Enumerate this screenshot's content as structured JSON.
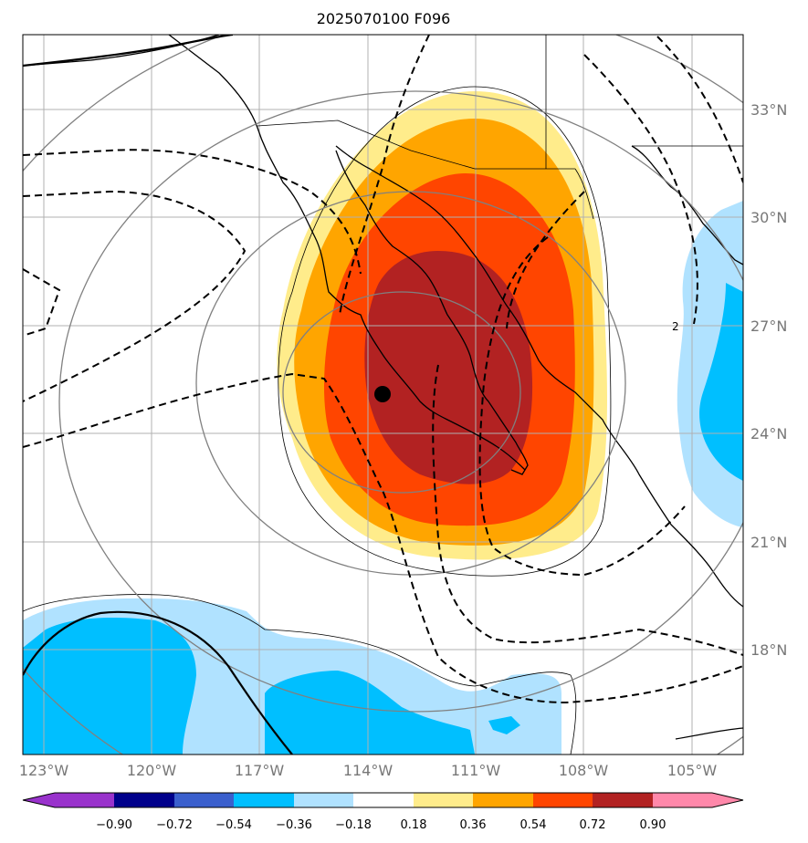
{
  "title": "2025070100 F096",
  "lat_labels": [
    "33°N",
    "30°N",
    "27°N",
    "24°N",
    "21°N",
    "18°N"
  ],
  "lon_labels": [
    "123°W",
    "120°W",
    "117°W",
    "114°W",
    "111°W",
    "108°W",
    "105°W"
  ],
  "contour_label": "2",
  "colorbar": {
    "ticks": [
      "−0.90",
      "−0.72",
      "−0.54",
      "−0.36",
      "−0.18",
      "0.18",
      "0.36",
      "0.54",
      "0.72",
      "0.90"
    ],
    "colors": [
      "#9932cc",
      "#00008b",
      "#3a5fcd",
      "#00bfff",
      "#b0e2ff",
      "#ffffff",
      "#ffec8b",
      "#ffa500",
      "#ff4500",
      "#b22222",
      "#ff88aa"
    ]
  },
  "center_marker": {
    "lon": -113.7,
    "lat": 25.1
  }
}
